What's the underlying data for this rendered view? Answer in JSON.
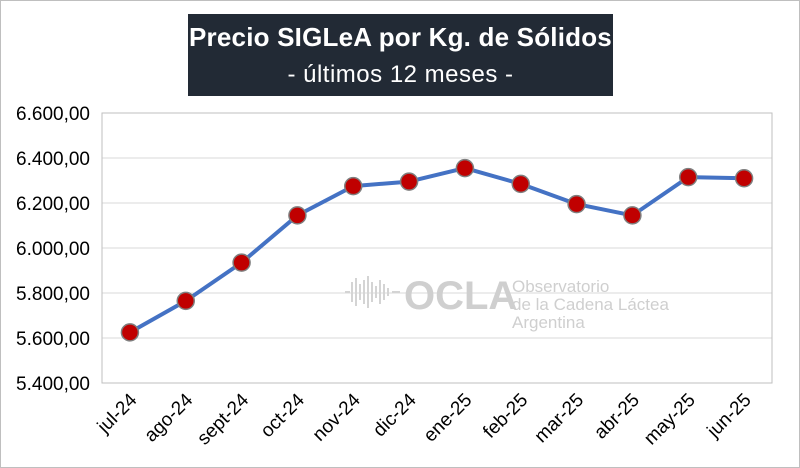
{
  "chart_data": {
    "type": "line",
    "title": "Precio SIGLeA por Kg. de Sólidos",
    "subtitle": "- últimos 12 meses -",
    "xlabel": "",
    "ylabel": "",
    "categories": [
      "jul-24",
      "ago-24",
      "sept-24",
      "oct-24",
      "nov-24",
      "dic-24",
      "ene-25",
      "feb-25",
      "mar-25",
      "abr-25",
      "may-25",
      "jun-25"
    ],
    "values": [
      5625,
      5765,
      5935,
      6145,
      6275,
      6295,
      6355,
      6285,
      6195,
      6145,
      6315,
      6310
    ],
    "ylim": [
      5400,
      6600
    ],
    "yticks": [
      5400,
      5600,
      5800,
      6000,
      6200,
      6400,
      6600
    ],
    "ytick_labels": [
      "5.400,00",
      "5.600,00",
      "5.800,00",
      "6.000,00",
      "6.200,00",
      "6.400,00",
      "6.600,00"
    ],
    "grid": true,
    "line_color": "#4472c4",
    "marker_color": "#c00000",
    "marker_edge_color": "#7f7f7f"
  },
  "watermark": {
    "word": "OCLA",
    "lines": [
      "Observatorio",
      "de la Cadena Láctea",
      "Argentina"
    ]
  }
}
